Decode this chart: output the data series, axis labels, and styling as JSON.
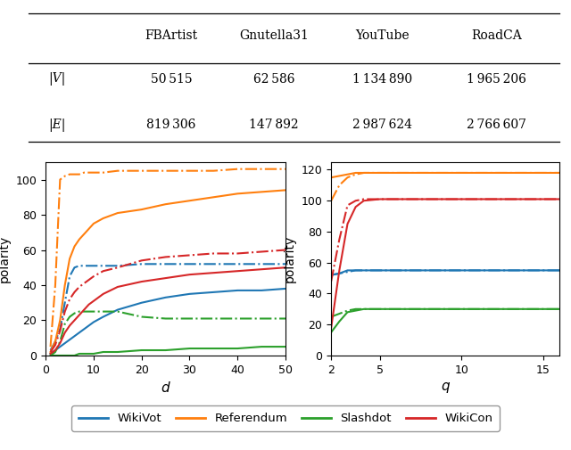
{
  "table": {
    "columns": [
      "FBArtist",
      "Gnutella31",
      "YouTube",
      "RoadCA"
    ],
    "rows": [
      {
        "label": "|V|",
        "values": [
          "50 515",
          "62 586",
          "1 134 890",
          "1 965 206"
        ]
      },
      {
        "label": "|E|",
        "values": [
          "819 306",
          "147 892",
          "2 987 624",
          "2 766 607"
        ]
      }
    ]
  },
  "colors": {
    "WikiVot": "#1f77b4",
    "Referendum": "#ff7f0e",
    "Slashdot": "#2ca02c",
    "WikiCon": "#d62728"
  },
  "left_plot": {
    "xlabel": "d",
    "ylabel": "polarity",
    "xlim": [
      0,
      50
    ],
    "ylim": [
      0,
      110
    ],
    "d_values": [
      1,
      2,
      3,
      4,
      5,
      6,
      7,
      8,
      9,
      10,
      12,
      15,
      20,
      25,
      30,
      35,
      40,
      45,
      50
    ],
    "solid": {
      "WikiVot": [
        1,
        3,
        5,
        7,
        9,
        11,
        13,
        15,
        17,
        19,
        22,
        26,
        30,
        33,
        35,
        36,
        37,
        37,
        38
      ],
      "Referendum": [
        2,
        8,
        20,
        40,
        55,
        62,
        66,
        69,
        72,
        75,
        78,
        81,
        83,
        86,
        88,
        90,
        92,
        93,
        94
      ],
      "Slashdot": [
        0,
        0,
        0,
        0,
        0,
        0,
        1,
        1,
        1,
        1,
        2,
        2,
        3,
        3,
        4,
        4,
        4,
        5,
        5
      ],
      "WikiCon": [
        1,
        3,
        7,
        13,
        17,
        20,
        23,
        26,
        29,
        31,
        35,
        39,
        42,
        44,
        46,
        47,
        48,
        49,
        50
      ]
    },
    "dashdot": {
      "WikiVot": [
        3,
        8,
        15,
        30,
        45,
        50,
        51,
        51,
        51,
        51,
        51,
        51,
        52,
        52,
        52,
        52,
        52,
        52,
        52
      ],
      "Referendum": [
        5,
        40,
        100,
        102,
        103,
        103,
        103,
        104,
        104,
        104,
        104,
        105,
        105,
        105,
        105,
        105,
        106,
        106,
        106
      ],
      "Slashdot": [
        0,
        2,
        8,
        18,
        22,
        24,
        25,
        25,
        25,
        25,
        25,
        25,
        22,
        21,
        21,
        21,
        21,
        21,
        21
      ],
      "WikiCon": [
        2,
        6,
        14,
        25,
        32,
        36,
        39,
        41,
        43,
        45,
        48,
        50,
        54,
        56,
        57,
        58,
        58,
        59,
        60
      ]
    }
  },
  "right_plot": {
    "xlabel": "q",
    "ylabel": "polarity",
    "xlim": [
      2,
      16
    ],
    "ylim": [
      0,
      125
    ],
    "yticks": [
      0,
      20,
      40,
      60,
      80,
      100,
      120
    ],
    "q_values": [
      2,
      2.5,
      3,
      3.5,
      4,
      5,
      6,
      7,
      8,
      10,
      12,
      14,
      16
    ],
    "solid": {
      "WikiVot": [
        52,
        53,
        55,
        55,
        55,
        55,
        55,
        55,
        55,
        55,
        55,
        55,
        55
      ],
      "Referendum": [
        115,
        116,
        117,
        118,
        118,
        118,
        118,
        118,
        118,
        118,
        118,
        118,
        118
      ],
      "Slashdot": [
        15,
        22,
        28,
        29,
        30,
        30,
        30,
        30,
        30,
        30,
        30,
        30,
        30
      ],
      "WikiCon": [
        18,
        55,
        85,
        96,
        100,
        101,
        101,
        101,
        101,
        101,
        101,
        101,
        101
      ]
    },
    "dashdot": {
      "WikiVot": [
        52,
        53,
        54,
        55,
        55,
        55,
        55,
        55,
        55,
        55,
        55,
        55,
        55
      ],
      "Referendum": [
        100,
        110,
        115,
        117,
        118,
        118,
        118,
        118,
        118,
        118,
        118,
        118,
        118
      ],
      "Slashdot": [
        25,
        27,
        29,
        30,
        30,
        30,
        30,
        30,
        30,
        30,
        30,
        30,
        30
      ],
      "WikiCon": [
        48,
        75,
        97,
        100,
        101,
        101,
        101,
        101,
        101,
        101,
        101,
        101,
        101
      ]
    }
  },
  "legend_labels": [
    "WikiVot",
    "Referendum",
    "Slashdot",
    "WikiCon"
  ]
}
